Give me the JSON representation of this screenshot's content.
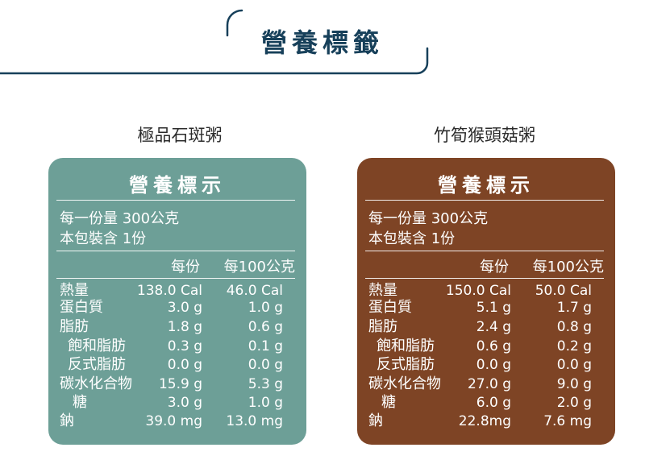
{
  "header": {
    "title": "營養標籤"
  },
  "colors": {
    "navy": "#17405a",
    "teal": "#6d9f97",
    "brown": "#7e4425"
  },
  "products": [
    {
      "name": "極品石斑粥",
      "panel_title": "營養標示",
      "serving_size": "每一份量 300公克",
      "servings_per_pack": "本包裝含 1份",
      "col_per_serving": "每份",
      "col_per_100g": "每100公克",
      "rows": [
        {
          "label": "熱量",
          "per_serving": "138.0 Cal",
          "per_100g": "46.0 Cal"
        },
        {
          "label": "蛋白質",
          "per_serving": "3.0 g",
          "per_100g": "1.0 g"
        },
        {
          "label": "脂肪",
          "per_serving": "1.8 g",
          "per_100g": "0.6 g"
        },
        {
          "label": "飽和脂肪",
          "per_serving": "0.3 g",
          "per_100g": "0.1 g"
        },
        {
          "label": "反式脂肪",
          "per_serving": "0.0 g",
          "per_100g": "0.0 g"
        },
        {
          "label": "碳水化合物",
          "per_serving": "15.9 g",
          "per_100g": "5.3 g"
        },
        {
          "label": "糖",
          "per_serving": "3.0 g",
          "per_100g": "1.0 g"
        },
        {
          "label": "鈉",
          "per_serving": "39.0 mg",
          "per_100g": "13.0 mg"
        }
      ]
    },
    {
      "name": "竹筍猴頭菇粥",
      "panel_title": "營養標示",
      "serving_size": "每一份量 300公克",
      "servings_per_pack": "本包裝含 1份",
      "col_per_serving": "每份",
      "col_per_100g": "每100公克",
      "rows": [
        {
          "label": "熱量",
          "per_serving": "150.0 Cal",
          "per_100g": "50.0 Cal"
        },
        {
          "label": "蛋白質",
          "per_serving": "5.1 g",
          "per_100g": "1.7 g"
        },
        {
          "label": "脂肪",
          "per_serving": "2.4 g",
          "per_100g": "0.8 g"
        },
        {
          "label": "飽和脂肪",
          "per_serving": "0.6 g",
          "per_100g": "0.2 g"
        },
        {
          "label": "反式脂肪",
          "per_serving": "0.0 g",
          "per_100g": "0.0 g"
        },
        {
          "label": "碳水化合物",
          "per_serving": "27.0 g",
          "per_100g": "9.0 g"
        },
        {
          "label": "糖",
          "per_serving": "6.0 g",
          "per_100g": "2.0 g"
        },
        {
          "label": "鈉",
          "per_serving": "22.8mg",
          "per_100g": "7.6 mg"
        }
      ]
    }
  ]
}
